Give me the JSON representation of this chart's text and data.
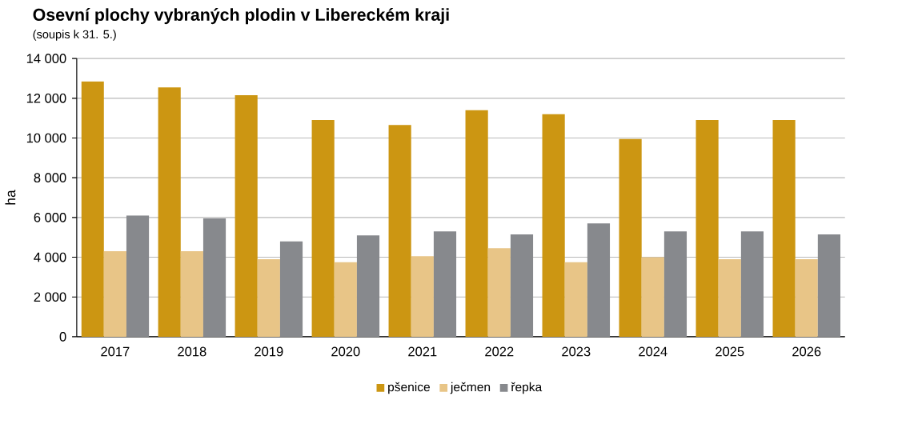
{
  "chart_data": {
    "type": "bar",
    "title": "Osevní plochy vybraných plodin v Libereckém kraji",
    "subtitle": "(soupis k 31. 5.)",
    "ylabel": "ha",
    "categories": [
      "2017",
      "2018",
      "2019",
      "2020",
      "2021",
      "2022",
      "2023",
      "2024",
      "2025",
      "2026"
    ],
    "series": [
      {
        "name": "pšenice",
        "color": "#cc9612",
        "values": [
          12850,
          12550,
          12150,
          10900,
          10650,
          11400,
          11200,
          9950,
          10900,
          10900
        ]
      },
      {
        "name": "ječmen",
        "color": "#e8c587",
        "values": [
          4300,
          4300,
          3900,
          3750,
          4050,
          4450,
          3750,
          4000,
          3900,
          3900
        ]
      },
      {
        "name": "řepka",
        "color": "#87898d",
        "values": [
          6100,
          5950,
          4800,
          5100,
          5300,
          5150,
          5700,
          5300,
          5300,
          5150
        ]
      }
    ],
    "ylim": [
      0,
      14000
    ],
    "yticks": [
      {
        "value": 0,
        "label": "0"
      },
      {
        "value": 2000,
        "label": "2 000"
      },
      {
        "value": 4000,
        "label": "4 000"
      },
      {
        "value": 6000,
        "label": "6 000"
      },
      {
        "value": 8000,
        "label": "8 000"
      },
      {
        "value": 10000,
        "label": "10 000"
      },
      {
        "value": 12000,
        "label": "12 000"
      },
      {
        "value": 14000,
        "label": "14 000"
      }
    ],
    "grid": "y",
    "legend": "bottom"
  }
}
